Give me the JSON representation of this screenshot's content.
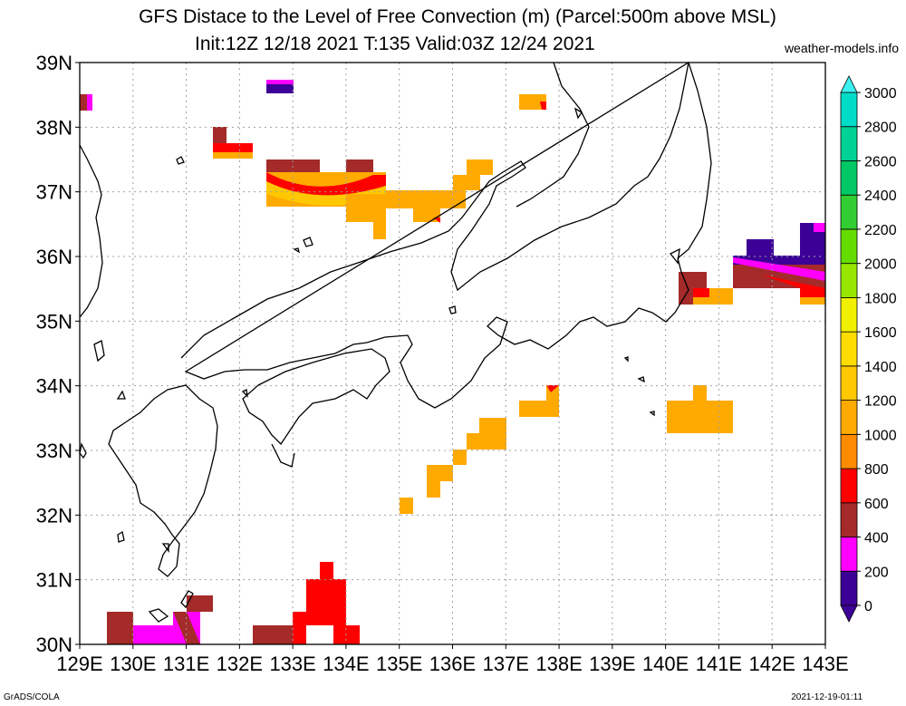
{
  "title": {
    "line1": "GFS Distace to the Level of Free Convection (m) (Parcel:500m above MSL)",
    "line2": "Init:12Z 12/18 2021 T:135 Valid:03Z 12/24 2021"
  },
  "source": "weather-models.info",
  "footer": {
    "left": "GrADS/COLA",
    "right": "2021-12-19-01:11"
  },
  "map": {
    "lon_range": [
      129,
      143
    ],
    "lat_range": [
      30,
      39
    ],
    "lon_labels": [
      "129E",
      "130E",
      "131E",
      "132E",
      "133E",
      "134E",
      "135E",
      "136E",
      "137E",
      "138E",
      "139E",
      "140E",
      "141E",
      "142E",
      "143E"
    ],
    "lat_labels": [
      "39N",
      "38N",
      "37N",
      "36N",
      "35N",
      "34N",
      "33N",
      "32N",
      "31N",
      "30N"
    ],
    "gridlines": true
  },
  "colorbar": {
    "levels": [
      "0",
      "200",
      "400",
      "600",
      "800",
      "1000",
      "1200",
      "1400",
      "1600",
      "1800",
      "2000",
      "2200",
      "2400",
      "2600",
      "2800",
      "3000"
    ],
    "colors": [
      "#3c0096",
      "#ff00ff",
      "#a52a2a",
      "#ff0000",
      "#ff8c00",
      "#ffaa00",
      "#ffc800",
      "#ffdc00",
      "#f0f000",
      "#96e600",
      "#64dc00",
      "#32cd32",
      "#00c864",
      "#00d296",
      "#00dcc8",
      "#00f0f0"
    ],
    "over_color": "#3cf0f0",
    "under_color": "#3c0096"
  }
}
